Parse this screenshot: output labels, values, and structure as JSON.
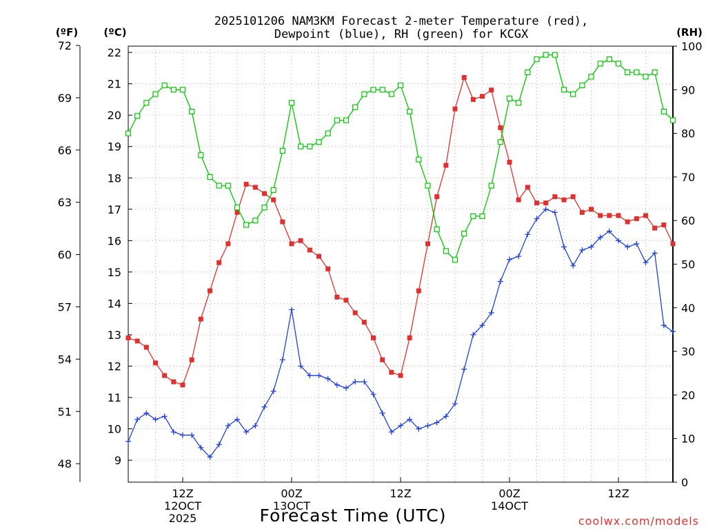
{
  "title_line1": "2025101206 NAM3KM Forecast 2-meter Temperature (red),",
  "title_line2": "Dewpoint (blue), RH (green) for KCGX",
  "unit_f": "(ºF)",
  "unit_c": "(ºC)",
  "unit_rh": "(RH)",
  "watermark": "coolwx.com/models",
  "chart_data": {
    "type": "line",
    "title": "2025101206 NAM3KM Forecast 2-meter Temperature (red), Dewpoint (blue), RH (green) for KCGX",
    "xlabel": "Forecast Time (UTC)",
    "x_hours": [
      0,
      1,
      2,
      3,
      4,
      5,
      6,
      7,
      8,
      9,
      10,
      11,
      12,
      13,
      14,
      15,
      16,
      17,
      18,
      19,
      20,
      21,
      22,
      23,
      24,
      25,
      26,
      27,
      28,
      29,
      30,
      31,
      32,
      33,
      34,
      35,
      36,
      37,
      38,
      39,
      40,
      41,
      42,
      43,
      44,
      45,
      46,
      47,
      48,
      49,
      50,
      51,
      52,
      53,
      54,
      55,
      56,
      57,
      58,
      59,
      60
    ],
    "xlim": [
      0,
      60
    ],
    "x_ticks": [
      {
        "h": 6,
        "lines": [
          "12Z",
          "12OCT",
          "2025"
        ]
      },
      {
        "h": 18,
        "lines": [
          "00Z",
          "13OCT"
        ]
      },
      {
        "h": 30,
        "lines": [
          "12Z"
        ]
      },
      {
        "h": 42,
        "lines": [
          "00Z",
          "14OCT"
        ]
      },
      {
        "h": 54,
        "lines": [
          "12Z"
        ]
      }
    ],
    "left_axis_c": {
      "label": "°C",
      "lim": [
        8.3,
        22.2
      ],
      "ticks": [
        "9",
        "10",
        "11",
        "12",
        "13",
        "14",
        "15",
        "16",
        "17",
        "18",
        "19",
        "20",
        "21",
        "22"
      ]
    },
    "left_axis_f": {
      "label": "°F",
      "lim": [
        46.94,
        71.96
      ],
      "ticks": [
        "48",
        "51",
        "54",
        "57",
        "60",
        "63",
        "66",
        "69",
        "72"
      ]
    },
    "right_axis_rh": {
      "label": "RH",
      "lim": [
        0,
        100
      ],
      "ticks": [
        "0",
        "10",
        "20",
        "30",
        "40",
        "50",
        "60",
        "70",
        "80",
        "90",
        "100"
      ]
    },
    "series": [
      {
        "name": "Temperature",
        "color": "#e03030",
        "marker": "filled-square",
        "units": "°C",
        "values": [
          12.9,
          12.8,
          12.6,
          12.1,
          11.7,
          11.5,
          11.4,
          12.2,
          13.5,
          14.4,
          15.3,
          15.9,
          16.9,
          17.8,
          17.7,
          17.5,
          17.3,
          16.6,
          15.9,
          16.0,
          15.7,
          15.5,
          15.1,
          14.2,
          14.1,
          13.7,
          13.4,
          12.9,
          12.2,
          11.8,
          11.7,
          12.9,
          14.4,
          15.9,
          17.4,
          18.4,
          20.2,
          21.2,
          20.5,
          20.6,
          20.8,
          19.6,
          18.5,
          17.3,
          17.7,
          17.2,
          17.2,
          17.4,
          17.3,
          17.4,
          16.9,
          17.0,
          16.8,
          16.8,
          16.8,
          16.6,
          16.7,
          16.8,
          16.4,
          16.5,
          15.9
        ]
      },
      {
        "name": "Dewpoint",
        "color": "#2040e0",
        "marker": "plus",
        "units": "°C",
        "values": [
          9.6,
          10.3,
          10.5,
          10.3,
          10.4,
          9.9,
          9.8,
          9.8,
          9.4,
          9.1,
          9.5,
          10.1,
          10.3,
          9.9,
          10.1,
          10.7,
          11.2,
          12.2,
          13.8,
          12.0,
          11.7,
          11.7,
          11.6,
          11.4,
          11.3,
          11.5,
          11.5,
          11.1,
          10.5,
          9.9,
          10.1,
          10.3,
          10.0,
          10.1,
          10.2,
          10.4,
          10.8,
          11.9,
          13.0,
          13.3,
          13.7,
          14.7,
          15.4,
          15.5,
          16.2,
          16.7,
          17.0,
          16.9,
          15.8,
          15.2,
          15.7,
          15.8,
          16.1,
          16.3,
          16.0,
          15.8,
          15.9,
          15.3,
          15.6,
          13.3,
          13.1
        ]
      },
      {
        "name": "RH",
        "color": "#00c800",
        "marker": "open-square",
        "units": "%",
        "values": [
          80,
          84,
          87,
          89,
          91,
          90,
          90,
          85,
          75,
          70,
          68,
          68,
          63,
          59,
          60,
          63,
          67,
          76,
          87,
          77,
          77,
          78,
          80,
          83,
          83,
          86,
          89,
          90,
          90,
          89,
          91,
          85,
          74,
          68,
          58,
          53,
          51,
          57,
          61,
          61,
          68,
          78,
          88,
          87,
          94,
          97,
          98,
          98,
          90,
          89,
          91,
          93,
          96,
          97,
          96,
          94,
          94,
          93,
          94,
          85,
          83
        ]
      }
    ]
  }
}
